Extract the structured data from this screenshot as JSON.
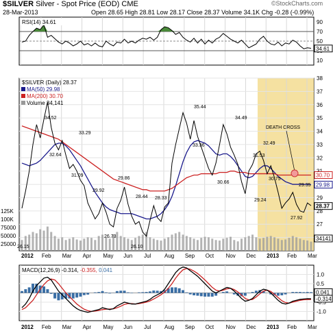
{
  "header": {
    "symbol": "$SILVER",
    "name": "Silver - Spot Price (EOD)",
    "exchange": "CME",
    "date": "28-Mar-2013",
    "quote": "Open 28.65  High 28.81  Low 28.17  Close 28.37  Volume 34.1K  Chg -0.28 (-0.99%)",
    "watermark": "©StockCharts.com",
    "quote_color": "#000000",
    "chg_color": "#cc0000"
  },
  "chart_data": [
    {
      "type": "line",
      "panel": "rsi",
      "title": "RSI(14) 34.61",
      "ylim": [
        0,
        100
      ],
      "y_ticks": [
        10,
        30,
        50,
        70,
        90
      ],
      "reference_lines": [
        30,
        50,
        70
      ],
      "x_tick_labels": [
        "2012",
        "Feb",
        "Mar",
        "Apr",
        "May",
        "Jun",
        "Jul",
        "Aug",
        "Sep",
        "Oct",
        "Nov",
        "Dec",
        "2013",
        "Feb",
        "Mar"
      ],
      "last_value_label": "34.61",
      "series": [
        {
          "name": "RSI(14)",
          "color": "#000000",
          "values": [
            48,
            50,
            62,
            70,
            77,
            74,
            84,
            58,
            62,
            55,
            48,
            44,
            50,
            46,
            40,
            44,
            50,
            42,
            45,
            40,
            46,
            40,
            38,
            50,
            44,
            40,
            48,
            46,
            54,
            46,
            50,
            46,
            52,
            56,
            54,
            58,
            52,
            58,
            74,
            80,
            78,
            72,
            64,
            68,
            58,
            52,
            48,
            56,
            46,
            54,
            44,
            52,
            46,
            54,
            58,
            66,
            60,
            54,
            50,
            46,
            52,
            44,
            36,
            40,
            44,
            54,
            60,
            50,
            44,
            42,
            48,
            40,
            46,
            44,
            52,
            48,
            40,
            34,
            36,
            35
          ]
        }
      ]
    },
    {
      "type": "line",
      "panel": "price",
      "title": "$SILVER (Daily) 28.37",
      "ylim": [
        25,
        38
      ],
      "y_ticks": [
        26,
        27,
        28,
        29,
        30,
        31,
        32,
        33,
        34,
        35,
        36,
        37,
        38
      ],
      "x_tick_labels": [
        "2012",
        "Feb",
        "Mar",
        "Apr",
        "May",
        "Jun",
        "Jul",
        "Aug",
        "Sep",
        "Oct",
        "Nov",
        "Dec",
        "2013",
        "Feb",
        "Mar"
      ],
      "volume_ticks": [
        "25000",
        "50000",
        "75000",
        "100K",
        "125K"
      ],
      "annotations": [
        "34.52",
        "32.64",
        "33.29",
        "31.09",
        "29.92",
        "29.86",
        "28.44",
        "28.33",
        "26.73",
        "26.10",
        "26.15",
        "35.44",
        "33.36",
        "34.49",
        "30.66",
        "31.53",
        "29.24",
        "32.49",
        "30.75",
        "29.35",
        "27.92",
        "DEATH CROSS"
      ],
      "last_value_labels": [
        "30.70",
        "29.98",
        "28.37",
        "34141"
      ],
      "highlight": {
        "label": "shaded region 2013",
        "color": "#f3d98a"
      },
      "series": [
        {
          "name": "$SILVER (Daily)",
          "color": "#000000",
          "values": [
            28.2,
            29.5,
            31.0,
            33.0,
            34.5,
            33.5,
            34.9,
            36.2,
            34.3,
            33.1,
            32.6,
            33.3,
            32.2,
            31.2,
            31.5,
            31.0,
            30.3,
            29.9,
            28.6,
            28.0,
            27.4,
            27.8,
            28.6,
            27.9,
            27.0,
            26.8,
            28.2,
            28.8,
            29.8,
            28.5,
            27.6,
            27.0,
            27.2,
            26.4,
            26.1,
            27.3,
            28.4,
            27.5,
            27.2,
            28.3,
            28.6,
            31.6,
            33.0,
            34.2,
            35.4,
            34.6,
            33.4,
            34.8,
            33.6,
            32.8,
            32.0,
            31.2,
            30.7,
            31.6,
            33.0,
            34.5,
            33.8,
            32.8,
            32.2,
            31.5,
            30.2,
            29.3,
            31.0,
            31.5,
            32.3,
            32.5,
            31.8,
            30.8,
            31.4,
            30.5,
            29.4,
            28.2,
            28.6,
            28.9,
            29.4,
            28.5,
            28.0,
            27.9,
            28.6,
            28.4
          ]
        },
        {
          "name": "MA(50) 29.98",
          "color": "#1a1a8c",
          "values": [
            31.6,
            31.5,
            31.4,
            31.5,
            31.6,
            31.8,
            32.1,
            32.4,
            32.7,
            33.0,
            33.1,
            33.1,
            32.9,
            32.6,
            32.2,
            31.8,
            31.4,
            30.9,
            30.4,
            29.9,
            29.4,
            29.0,
            28.6,
            28.3,
            28.1,
            28.0,
            27.9,
            27.8,
            27.8,
            27.8,
            27.8,
            27.7,
            27.6,
            27.5,
            27.4,
            27.4,
            27.5,
            27.6,
            27.8,
            28.1,
            28.5,
            29.1,
            29.9,
            30.8,
            31.7,
            32.4,
            32.9,
            33.2,
            33.3,
            33.2,
            33.1,
            32.9,
            32.6,
            32.3,
            32.2,
            32.3,
            32.3,
            32.1,
            31.8,
            31.4,
            31.0,
            30.6,
            30.5,
            30.6,
            30.9,
            31.2,
            31.4,
            31.4,
            31.2,
            30.9,
            30.6,
            30.4,
            30.2,
            30.1,
            30.0,
            30.0,
            30.0,
            30.0,
            30.0,
            29.98
          ]
        },
        {
          "name": "MA(200) 30.70",
          "color": "#cc2222",
          "values": [
            34.4,
            34.3,
            34.2,
            34.1,
            34.0,
            33.9,
            33.8,
            33.7,
            33.6,
            33.5,
            33.4,
            33.2,
            33.0,
            32.8,
            32.6,
            32.4,
            32.2,
            32.0,
            31.8,
            31.6,
            31.4,
            31.2,
            31.0,
            30.8,
            30.6,
            30.4,
            30.3,
            30.2,
            30.1,
            30.0,
            29.9,
            29.8,
            29.7,
            29.6,
            29.6,
            29.5,
            29.5,
            29.5,
            29.5,
            29.5,
            29.6,
            29.7,
            29.9,
            30.1,
            30.3,
            30.5,
            30.6,
            30.7,
            30.7,
            30.8,
            30.8,
            30.8,
            30.8,
            30.8,
            30.9,
            30.9,
            30.9,
            31.0,
            31.0,
            30.9,
            30.9,
            30.9,
            30.8,
            30.8,
            30.8,
            30.8,
            30.8,
            30.8,
            30.8,
            30.8,
            30.7,
            30.7,
            30.7,
            30.7,
            30.7,
            30.7,
            30.7,
            30.7,
            30.7,
            30.7
          ]
        },
        {
          "name": "Volume 34,141",
          "color": "#999999",
          "values": [
            40,
            55,
            60,
            70,
            65,
            80,
            75,
            90,
            70,
            55,
            45,
            50,
            40,
            45,
            50,
            42,
            38,
            45,
            50,
            48,
            40,
            55,
            60,
            50,
            45,
            60,
            70,
            55,
            50,
            45,
            40,
            48,
            55,
            60,
            70,
            50,
            45,
            40,
            38,
            45,
            50,
            60,
            65,
            70,
            60,
            55,
            50,
            45,
            40,
            48,
            52,
            50,
            45,
            40,
            38,
            45,
            48,
            52,
            40,
            35,
            45,
            50,
            55,
            60,
            50,
            45,
            48,
            52,
            55,
            50,
            45,
            40,
            42,
            48,
            55,
            50,
            45,
            40,
            38,
            34
          ]
        }
      ]
    },
    {
      "type": "line",
      "panel": "macd",
      "title": "MACD(12,26,9) -0.314, -0.355, 0.041",
      "ylim": [
        -1.5,
        1.5
      ],
      "y_ticks": [
        -1.0,
        -0.5,
        0.0,
        0.5,
        1.0
      ],
      "x_tick_labels": [
        "2012",
        "Feb",
        "Mar",
        "Apr",
        "May",
        "Jun",
        "Jul",
        "Aug",
        "Sep",
        "Oct",
        "Nov",
        "Dec",
        "2013",
        "Feb",
        "Mar"
      ],
      "last_value_labels": [
        "1.0",
        "0.041",
        "-0.314"
      ],
      "series": [
        {
          "name": "MACD",
          "color": "#000000",
          "values": [
            -0.8,
            -0.6,
            -0.3,
            0.1,
            0.4,
            0.6,
            0.8,
            0.85,
            0.7,
            0.4,
            0.1,
            -0.1,
            -0.3,
            -0.5,
            -0.7,
            -0.85,
            -0.95,
            -1.0,
            -1.05,
            -1.0,
            -0.95,
            -0.9,
            -0.8,
            -0.85,
            -0.9,
            -0.85,
            -0.7,
            -0.6,
            -0.5,
            -0.55,
            -0.6,
            -0.6,
            -0.55,
            -0.5,
            -0.45,
            -0.35,
            -0.2,
            -0.1,
            0.0,
            0.2,
            0.5,
            0.8,
            1.1,
            1.3,
            1.4,
            1.35,
            1.2,
            1.05,
            0.9,
            0.7,
            0.5,
            0.3,
            0.1,
            0.0,
            0.1,
            0.2,
            0.3,
            0.25,
            0.1,
            -0.1,
            -0.3,
            -0.45,
            -0.4,
            -0.3,
            -0.1,
            0.1,
            0.2,
            0.15,
            0.0,
            -0.2,
            -0.4,
            -0.55,
            -0.6,
            -0.55,
            -0.45,
            -0.4,
            -0.35,
            -0.33,
            -0.31,
            -0.314
          ]
        },
        {
          "name": "Signal",
          "color": "#cc2222",
          "values": [
            -0.9,
            -0.8,
            -0.6,
            -0.4,
            -0.1,
            0.2,
            0.45,
            0.65,
            0.75,
            0.7,
            0.5,
            0.25,
            0.0,
            -0.2,
            -0.4,
            -0.6,
            -0.75,
            -0.88,
            -0.96,
            -1.0,
            -0.98,
            -0.95,
            -0.9,
            -0.88,
            -0.87,
            -0.86,
            -0.8,
            -0.72,
            -0.62,
            -0.58,
            -0.58,
            -0.6,
            -0.58,
            -0.54,
            -0.5,
            -0.43,
            -0.33,
            -0.22,
            -0.1,
            0.05,
            0.25,
            0.5,
            0.8,
            1.05,
            1.25,
            1.32,
            1.28,
            1.18,
            1.05,
            0.88,
            0.7,
            0.5,
            0.3,
            0.15,
            0.1,
            0.15,
            0.22,
            0.25,
            0.18,
            0.05,
            -0.12,
            -0.3,
            -0.38,
            -0.35,
            -0.22,
            -0.05,
            0.1,
            0.15,
            0.08,
            -0.08,
            -0.25,
            -0.42,
            -0.52,
            -0.55,
            -0.5,
            -0.45,
            -0.4,
            -0.37,
            -0.36,
            -0.355
          ]
        },
        {
          "name": "Histogram",
          "color": "#3a6ea5",
          "values": [
            0.1,
            0.2,
            0.3,
            0.5,
            0.5,
            0.4,
            0.35,
            0.2,
            -0.05,
            -0.3,
            -0.4,
            -0.35,
            -0.3,
            -0.3,
            -0.3,
            -0.25,
            -0.2,
            -0.12,
            -0.09,
            0.0,
            0.03,
            0.05,
            0.1,
            0.03,
            -0.03,
            0.01,
            0.1,
            0.12,
            0.12,
            0.03,
            -0.02,
            0.0,
            0.03,
            0.04,
            0.05,
            0.08,
            0.13,
            0.12,
            0.1,
            0.15,
            0.25,
            0.3,
            0.3,
            0.25,
            0.15,
            0.03,
            -0.08,
            -0.13,
            -0.15,
            -0.18,
            -0.2,
            -0.2,
            -0.2,
            -0.15,
            0.0,
            0.05,
            0.08,
            0.0,
            -0.08,
            -0.15,
            -0.18,
            -0.15,
            -0.02,
            0.05,
            0.12,
            0.15,
            0.1,
            0.0,
            -0.08,
            -0.12,
            -0.15,
            -0.13,
            -0.08,
            0.0,
            0.05,
            0.05,
            0.05,
            0.04,
            0.05,
            0.041
          ]
        }
      ]
    }
  ]
}
